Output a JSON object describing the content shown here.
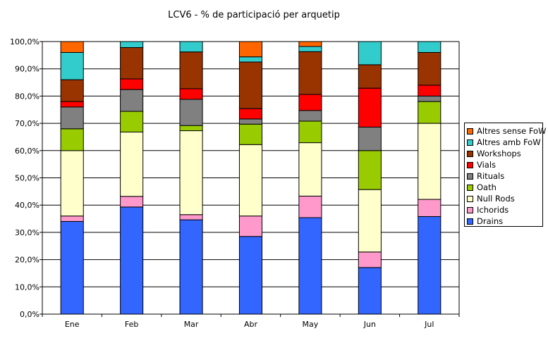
{
  "chart_data": {
    "type": "bar",
    "stacked": true,
    "title": "LCV6 - % de participació per arquetip",
    "categories": [
      "Ene",
      "Feb",
      "Mar",
      "Abr",
      "May",
      "Jun",
      "Jul"
    ],
    "ylim": [
      0,
      100
    ],
    "yticks": [
      "0,0%",
      "10,0%",
      "20,0%",
      "30,0%",
      "40,0%",
      "50,0%",
      "60,0%",
      "70,0%",
      "80,0%",
      "90,0%",
      "100,0%"
    ],
    "grid": true,
    "legend_position": "right",
    "series": [
      {
        "name": "Drains",
        "color": "#3366FF",
        "values": [
          34.0,
          39.3,
          34.6,
          28.5,
          35.4,
          17.1,
          35.8
        ]
      },
      {
        "name": "Ichorids",
        "color": "#FF99CC",
        "values": [
          2.0,
          3.9,
          1.9,
          7.5,
          7.9,
          5.7,
          6.3
        ]
      },
      {
        "name": "Null Rods",
        "color": "#FFFFCC",
        "values": [
          24.0,
          23.6,
          30.8,
          26.2,
          19.6,
          22.9,
          27.9
        ]
      },
      {
        "name": "Oath",
        "color": "#99CC00",
        "values": [
          8.0,
          7.6,
          1.9,
          7.5,
          7.9,
          14.3,
          8.0
        ]
      },
      {
        "name": "Rituals",
        "color": "#808080",
        "values": [
          8.0,
          8.0,
          9.6,
          1.9,
          3.9,
          8.6,
          2.0
        ]
      },
      {
        "name": "Vials",
        "color": "#FF0000",
        "values": [
          2.0,
          3.9,
          3.9,
          3.8,
          5.9,
          14.3,
          4.0
        ]
      },
      {
        "name": "Workshops",
        "color": "#993300",
        "values": [
          8.0,
          11.5,
          13.5,
          17.1,
          15.7,
          8.6,
          12.0
        ]
      },
      {
        "name": "Altres amb FoW",
        "color": "#33CCCC",
        "values": [
          10.0,
          2.2,
          3.8,
          1.9,
          1.9,
          8.5,
          4.0
        ]
      },
      {
        "name": "Altres sense FoW",
        "color": "#FF6600",
        "values": [
          4.0,
          0.0,
          0.0,
          5.6,
          1.8,
          0.0,
          0.0
        ]
      }
    ]
  }
}
